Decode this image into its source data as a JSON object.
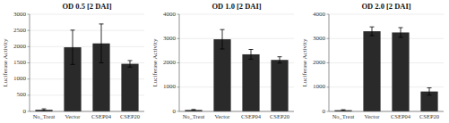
{
  "chart_data": [
    {
      "type": "bar",
      "title": "OD 0.5 [2 DAI]",
      "ylabel": "Luciferase Activity",
      "categories": [
        "No_Treat",
        "Vector",
        "CSEP04",
        "CSEP20"
      ],
      "values": [
        50,
        1980,
        2100,
        1470
      ],
      "errors": [
        30,
        530,
        600,
        100
      ],
      "color": "#2a2a2a",
      "ylim": [
        0,
        3000
      ],
      "yticks": [
        0,
        500,
        1000,
        1500,
        2000,
        2500,
        3000
      ],
      "grid": true
    },
    {
      "type": "bar",
      "title": "OD 1.0 [2 DAI]",
      "ylabel": "Luciferase Activity",
      "categories": [
        "No_Treat",
        "Vector",
        "CSEP04",
        "CSEP20"
      ],
      "values": [
        60,
        2970,
        2350,
        2120
      ],
      "errors": [
        20,
        400,
        200,
        130
      ],
      "color": "#2a2a2a",
      "ylim": [
        0,
        4000
      ],
      "yticks": [
        0,
        1000,
        2000,
        3000,
        4000
      ],
      "grid": true
    },
    {
      "type": "bar",
      "title": "OD 2.0 [2 DAI]",
      "ylabel": "Luciferase Activity",
      "categories": [
        "No_Treat",
        "Vector",
        "CSEP04",
        "CSEP20"
      ],
      "values": [
        50,
        3300,
        3250,
        820
      ],
      "errors": [
        20,
        180,
        200,
        150
      ],
      "color": "#2a2a2a",
      "ylim": [
        0,
        4000
      ],
      "yticks": [
        0,
        1000,
        2000,
        3000,
        4000
      ],
      "grid": true
    }
  ]
}
